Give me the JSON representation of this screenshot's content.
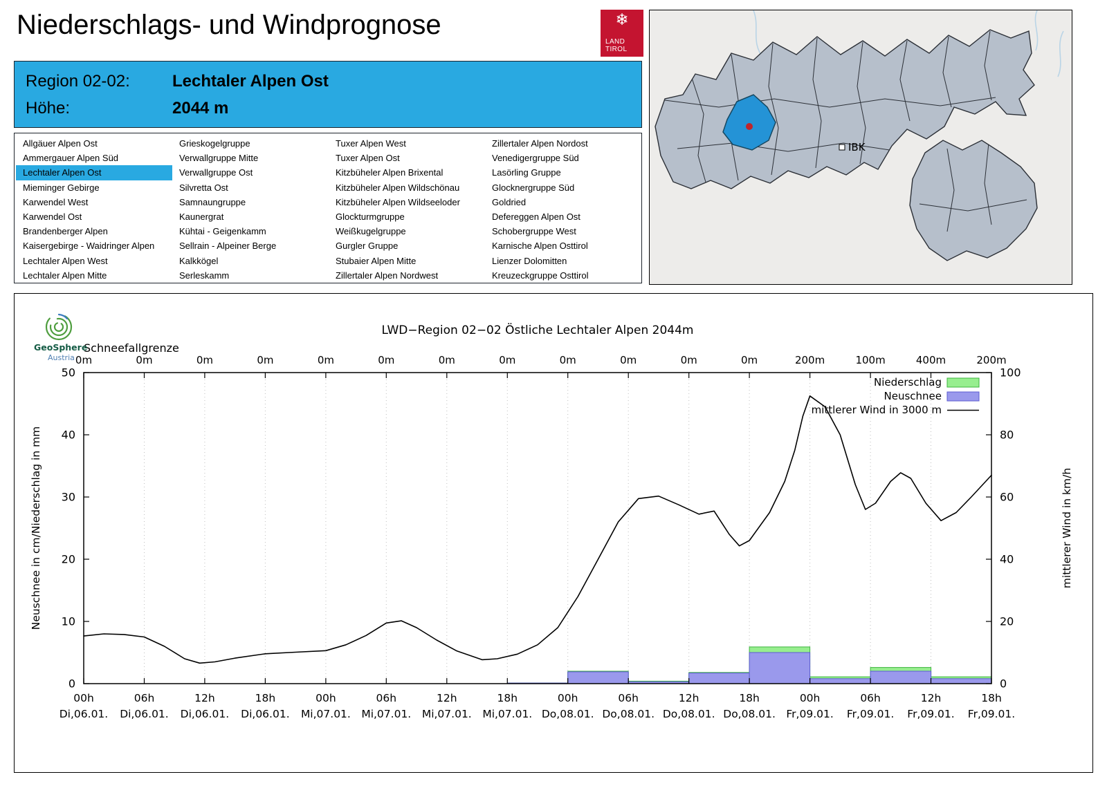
{
  "page": {
    "title": "Niederschlags- und Windprognose"
  },
  "header": {
    "region_label": "Region 02-02:",
    "region_value": "Lechtaler Alpen Ost",
    "altitude_label": "Höhe:",
    "altitude_value": "2044 m",
    "accent_color": "#29a9e1"
  },
  "logo": {
    "line1": "LAND",
    "line2": "TIROL",
    "color": "#c41430"
  },
  "map": {
    "marker_label": "IBK"
  },
  "geosphere": {
    "name": "GeoSphere",
    "sub": "Austria"
  },
  "region_list": {
    "selected": "Lechtaler Alpen Ost",
    "columns": [
      [
        "Allgäuer Alpen Ost",
        "Ammergauer Alpen Süd",
        "Lechtaler Alpen Ost",
        "Mieminger Gebirge",
        "Karwendel West",
        "Karwendel Ost",
        "Brandenberger Alpen",
        "Kaisergebirge - Waidringer Alpen",
        "Lechtaler Alpen West",
        "Lechtaler Alpen Mitte"
      ],
      [
        "Grieskogelgruppe",
        "Verwallgruppe Mitte",
        "Verwallgruppe Ost",
        "Silvretta Ost",
        "Samnaungruppe",
        "Kaunergrat",
        "Kühtai - Geigenkamm",
        "Sellrain - Alpeiner Berge",
        "Kalkkögel",
        "Serleskamm"
      ],
      [
        "Tuxer Alpen West",
        "Tuxer Alpen Ost",
        "Kitzbüheler Alpen Brixental",
        "Kitzbüheler Alpen Wildschönau",
        "Kitzbüheler Alpen Wildseeloder",
        "Glockturmgruppe",
        "Weißkugelgruppe",
        "Gurgler Gruppe",
        "Stubaier Alpen Mitte",
        "Zillertaler Alpen Nordwest"
      ],
      [
        "Zillertaler Alpen Nordost",
        "Venedigergruppe Süd",
        "Lasörling Gruppe",
        "Glocknergruppe Süd",
        "Goldried",
        "Defereggen Alpen Ost",
        "Schobergruppe West",
        "Karnische Alpen Osttirol",
        "Lienzer Dolomitten",
        "Kreuzeckgruppe Osttirol"
      ]
    ]
  },
  "chart_data": {
    "type": "mixed",
    "title": "LWD−Region 02−02 Östliche Lechtaler Alpen 2044m",
    "top_axis_label": "Schneefallgrenze",
    "ylabel_left": "Neuschnee in cm/Niederschlag in mm",
    "ylabel_right": "mittlerer Wind in km/h",
    "ylim_left": [
      0,
      50
    ],
    "ylim_right": [
      0,
      100
    ],
    "left_ticks": [
      0,
      10,
      20,
      30,
      40,
      50
    ],
    "right_ticks": [
      0,
      20,
      40,
      60,
      80,
      100
    ],
    "x_hours_range": [
      0,
      90
    ],
    "ticks_hours": [
      0,
      6,
      12,
      18,
      24,
      30,
      36,
      42,
      48,
      54,
      60,
      66,
      72,
      78,
      84,
      90
    ],
    "x_tick_hour_labels": [
      "00h",
      "06h",
      "12h",
      "18h",
      "00h",
      "06h",
      "12h",
      "18h",
      "00h",
      "06h",
      "12h",
      "18h",
      "00h",
      "06h",
      "12h",
      "18h"
    ],
    "x_tick_date_labels": [
      "Di,06.01.",
      "Di,06.01.",
      "Di,06.01.",
      "Di,06.01.",
      "Mi,07.01.",
      "Mi,07.01.",
      "Mi,07.01.",
      "Mi,07.01.",
      "Do,08.01.",
      "Do,08.01.",
      "Do,08.01.",
      "Do,08.01.",
      "Fr,09.01.",
      "Fr,09.01.",
      "Fr,09.01.",
      "Fr,09.01."
    ],
    "snowfall_line_labels": [
      "0m",
      "0m",
      "0m",
      "0m",
      "0m",
      "0m",
      "0m",
      "0m",
      "0m",
      "0m",
      "0m",
      "0m",
      "200m",
      "100m",
      "400m",
      "200m"
    ],
    "legend": [
      {
        "label": "Niederschlag",
        "type": "box",
        "fill": "#97ee8f",
        "stroke": "#3db53d"
      },
      {
        "label": "Neuschnee",
        "type": "box",
        "fill": "#9a99ec",
        "stroke": "#5c5cd0"
      },
      {
        "label": "mittlerer Wind in 3000 m",
        "type": "line",
        "stroke": "#000000"
      }
    ],
    "bars": {
      "interval_hours": 6,
      "starts": [
        42,
        48,
        54,
        60,
        66,
        72,
        78,
        84
      ],
      "niederschlag_mm": [
        0.1,
        2.0,
        0.4,
        1.8,
        5.9,
        1.1,
        2.6,
        1.1
      ],
      "neuschnee_cm": [
        0.1,
        1.9,
        0.3,
        1.7,
        5.0,
        0.8,
        2.0,
        0.8
      ]
    },
    "wind": {
      "name": "mittlerer Wind in 3000 m",
      "unit": "km/h",
      "x_hours": [
        0,
        2,
        4,
        6,
        8,
        10,
        11.5,
        13,
        15,
        18,
        21,
        24,
        26,
        28,
        30,
        31.5,
        33,
        35,
        37,
        39.5,
        41,
        43,
        45,
        47,
        49,
        51,
        53,
        55,
        57,
        59,
        61,
        62.5,
        64,
        65,
        66,
        68,
        69.5,
        70.5,
        71.3,
        72,
        73.5,
        75,
        76.5,
        77.5,
        78.5,
        80,
        81,
        82,
        83.5,
        85,
        86.5,
        88,
        90
      ],
      "values_kmh": [
        15.3,
        16,
        15.8,
        15,
        12,
        8,
        6.6,
        7,
        8.2,
        9.6,
        10.1,
        10.6,
        12.5,
        15.5,
        19.5,
        20.2,
        18,
        14,
        10.5,
        7.7,
        8,
        9.5,
        12.5,
        18,
        28,
        40,
        52,
        59.5,
        60.3,
        57.5,
        54.5,
        55.5,
        48,
        44.3,
        46,
        55,
        65,
        75,
        86,
        92.5,
        89,
        80,
        64,
        56,
        58,
        65,
        67.8,
        66,
        58,
        52.4,
        55,
        60,
        67
      ]
    }
  }
}
